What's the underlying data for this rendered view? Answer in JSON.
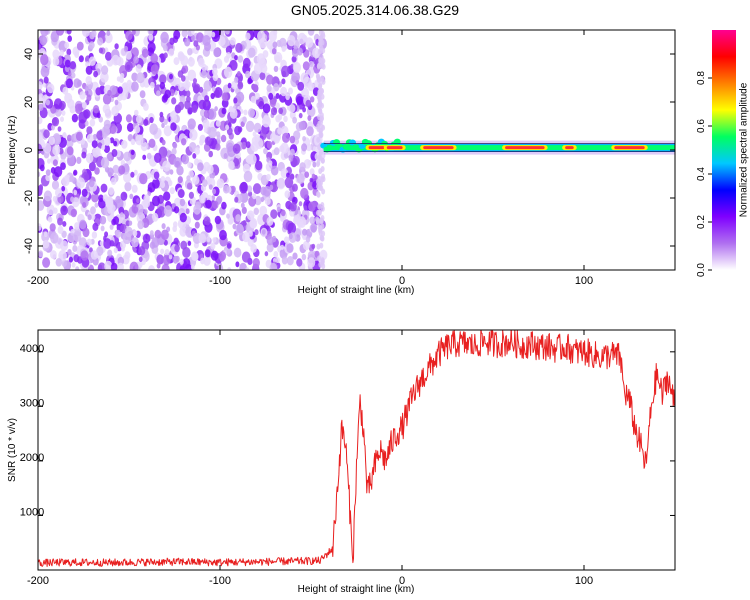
{
  "title": "GN05.2025.314.06.38.G29",
  "chart_data": [
    {
      "type": "heatmap",
      "name": "spectrogram",
      "xlabel": "Height of straight line (km)",
      "ylabel": "Frequency (Hz)",
      "xlim": [
        -200,
        150
      ],
      "ylim": [
        -50,
        50
      ],
      "x_ticks": [
        -200,
        -100,
        0,
        100
      ],
      "x_tick_labels": [
        "-200",
        "-100",
        "0",
        "100"
      ],
      "y_ticks": [
        -40,
        -20,
        0,
        20,
        40
      ],
      "y_tick_labels": [
        "-40",
        "-20",
        "0",
        "20",
        "40"
      ],
      "noise_region_x": [
        -200,
        -43
      ],
      "signal_region_x": [
        -43,
        150
      ],
      "signal_frequency_hz": 1,
      "colorbar": {
        "label": "Normalized spectral amplitude",
        "range": [
          0,
          1
        ],
        "ticks": [
          0,
          0.2,
          0.4,
          0.6,
          0.8
        ],
        "tick_labels": [
          "0.0",
          "0.2",
          "0.4",
          "0.6",
          "0.8"
        ],
        "colormap": [
          "#ffffff",
          "#b070f0",
          "#7f00ff",
          "#0000ff",
          "#00c8ff",
          "#00ff60",
          "#ffff00",
          "#ff8000",
          "#ff0000",
          "#ff0090"
        ]
      }
    },
    {
      "type": "line",
      "name": "snr",
      "xlabel": "Height of straight line (km)",
      "ylabel": "SNR (10 * v/v)",
      "xlim": [
        -200,
        150
      ],
      "ylim": [
        0,
        4400
      ],
      "x_ticks": [
        -200,
        -100,
        0,
        100
      ],
      "x_tick_labels": [
        "-200",
        "-100",
        "0",
        "100"
      ],
      "y_ticks": [
        1000,
        2000,
        3000,
        4000
      ],
      "y_tick_labels": [
        "1000",
        "2000",
        "3000",
        "4000"
      ],
      "line_color": "#e82020",
      "series": [
        {
          "name": "SNR",
          "x": [
            -200,
            -180,
            -160,
            -140,
            -120,
            -100,
            -80,
            -60,
            -45,
            -38,
            -33,
            -31,
            -29,
            -27,
            -25,
            -23,
            -21,
            -19,
            -17,
            -15,
            -12,
            -9,
            -6,
            -3,
            0,
            3,
            6,
            10,
            15,
            20,
            25,
            30,
            35,
            40,
            45,
            50,
            55,
            60,
            65,
            70,
            75,
            80,
            85,
            90,
            95,
            100,
            105,
            110,
            115,
            120,
            122,
            125,
            128,
            131,
            134,
            137,
            140,
            143,
            146,
            150
          ],
          "values": [
            130,
            140,
            135,
            145,
            150,
            140,
            150,
            160,
            170,
            400,
            2600,
            2300,
            1300,
            150,
            1900,
            3100,
            2500,
            1400,
            1600,
            1900,
            2200,
            2000,
            2300,
            2500,
            2600,
            2900,
            3200,
            3450,
            3700,
            3950,
            4100,
            4150,
            4150,
            4100,
            4200,
            4150,
            4150,
            4200,
            4100,
            4150,
            4100,
            4100,
            4050,
            4100,
            4000,
            4000,
            3950,
            3900,
            3950,
            3900,
            3300,
            3100,
            2600,
            2300,
            1900,
            3000,
            3600,
            3200,
            3550,
            3000
          ]
        }
      ]
    }
  ]
}
